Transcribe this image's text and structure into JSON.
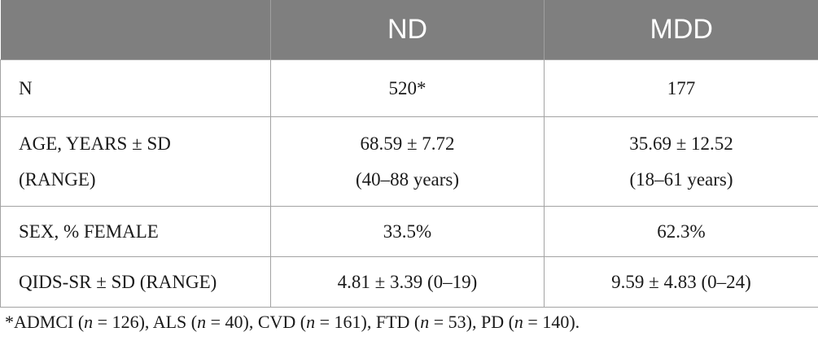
{
  "table": {
    "headers": [
      "",
      "ND",
      "MDD"
    ],
    "rows": [
      {
        "label": [
          "N"
        ],
        "nd": [
          "520*"
        ],
        "mdd": [
          "177"
        ]
      },
      {
        "label": [
          "AGE, YEARS ± SD",
          "(RANGE)"
        ],
        "nd": [
          "68.59 ± 7.72",
          "(40–88 years)"
        ],
        "mdd": [
          "35.69 ± 12.52",
          "(18–61 years)"
        ]
      },
      {
        "label": [
          "SEX, % FEMALE"
        ],
        "nd": [
          "33.5%"
        ],
        "mdd": [
          "62.3%"
        ]
      },
      {
        "label": [
          "QIDS-SR ± SD (RANGE)"
        ],
        "nd": [
          "4.81 ± 3.39 (0–19)"
        ],
        "mdd": [
          "9.59 ± 4.83 (0–24)"
        ]
      }
    ]
  },
  "footnote": "*ADMCI (n = 126), ALS (n = 40), CVD (n = 161), FTD (n = 53), PD (n = 140)."
}
